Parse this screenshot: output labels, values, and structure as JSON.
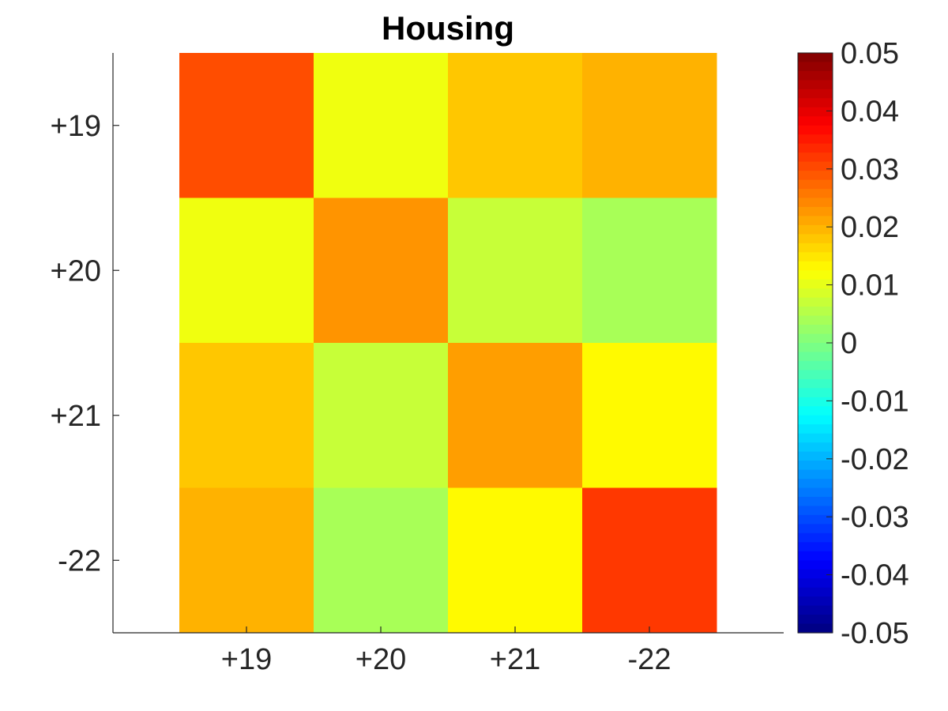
{
  "chart_data": {
    "type": "heatmap",
    "title": "Housing",
    "xlabel": "",
    "ylabel": "",
    "x_categories": [
      "+19",
      "+20",
      "+21",
      "-22"
    ],
    "y_categories": [
      "+19",
      "+20",
      "+21",
      "-22"
    ],
    "values": [
      [
        0.03,
        0.011,
        0.018,
        0.02
      ],
      [
        0.011,
        0.023,
        0.007,
        0.004
      ],
      [
        0.018,
        0.007,
        0.022,
        0.013
      ],
      [
        0.02,
        0.004,
        0.013,
        0.032
      ]
    ],
    "colormap": "jet",
    "clim": [
      -0.05,
      0.05
    ],
    "colorbar": {
      "position": "right",
      "ticks": [
        0.05,
        0.04,
        0.03,
        0.02,
        0.01,
        0,
        -0.01,
        -0.02,
        -0.03,
        -0.04,
        -0.05
      ],
      "tick_labels": [
        "0.05",
        "0.04",
        "0.03",
        "0.02",
        "0.01",
        "0",
        "-0.01",
        "-0.02",
        "-0.03",
        "-0.04",
        "-0.05"
      ]
    },
    "grid": false
  }
}
